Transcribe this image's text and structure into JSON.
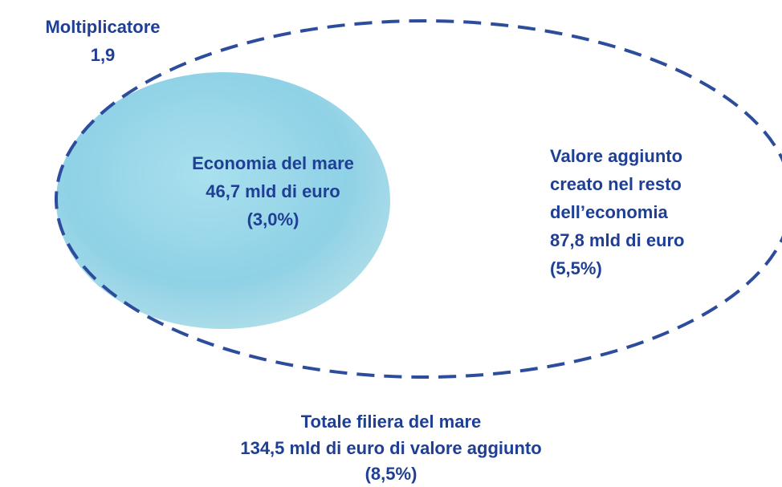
{
  "multiplier": {
    "label": "Moltiplicatore",
    "value": "1,9"
  },
  "inner": {
    "lines": [
      "Economia del mare",
      "46,7 mld di euro",
      "(3,0%)"
    ]
  },
  "outer": {
    "lines": [
      "Valore aggiunto",
      "creato nel resto",
      "dell’economia",
      "87,8 mld di euro",
      "(5,5%)"
    ]
  },
  "total": {
    "lines": [
      "Totale filiera del mare",
      "134,5 mld di euro di valore aggiunto",
      "(8,5%)"
    ]
  }
}
